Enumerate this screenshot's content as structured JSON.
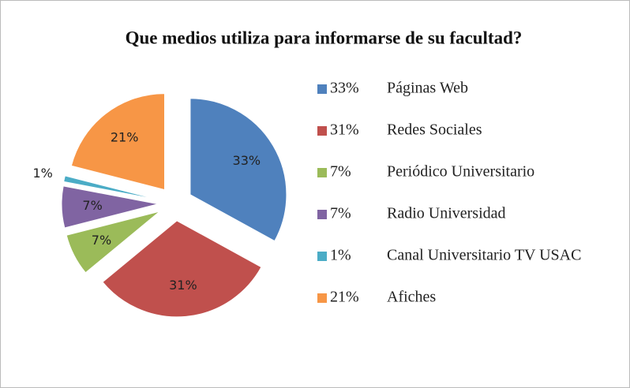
{
  "chart_data": {
    "type": "pie",
    "title": "Que medios utiliza para informarse de su facultad?",
    "categories": [
      "Páginas Web",
      "Redes Sociales",
      "Periódico Universitario",
      "Radio Universidad",
      "Canal Universitario TV USAC",
      "Afiches"
    ],
    "values": [
      33,
      31,
      7,
      7,
      1,
      21
    ],
    "value_labels": [
      "33%",
      "31%",
      "7%",
      "7%",
      "1%",
      "21%"
    ],
    "colors": [
      "#4f81bd",
      "#c0504d",
      "#9bbb59",
      "#8064a2",
      "#4bacc6",
      "#f79646"
    ],
    "legend": "right"
  }
}
